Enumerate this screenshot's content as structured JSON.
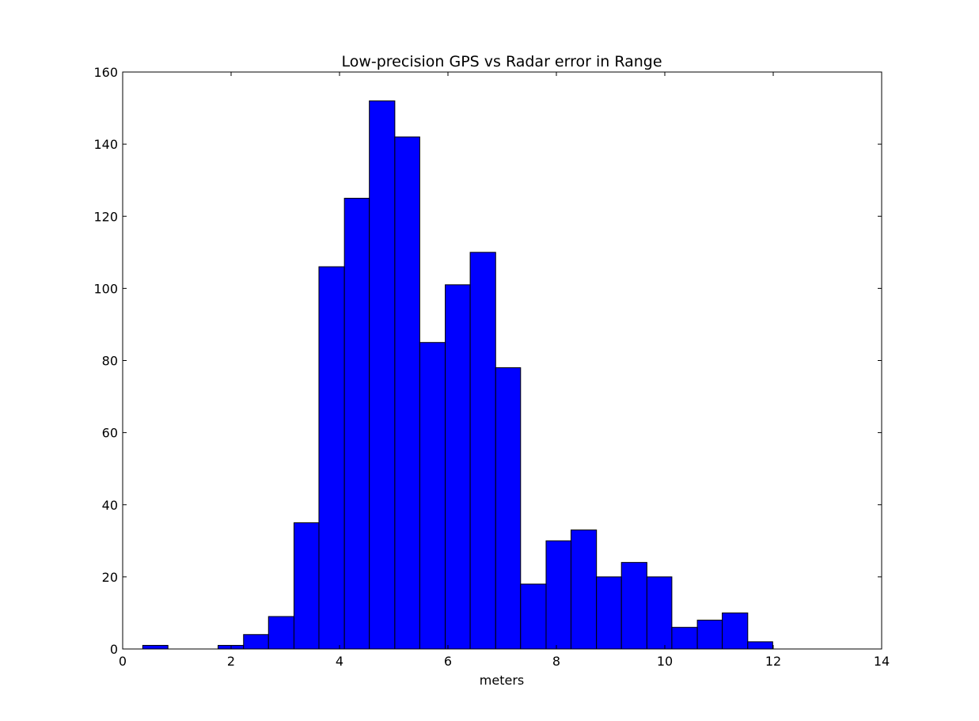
{
  "chart_data": {
    "type": "bar",
    "title": "Low-precision GPS vs Radar error in Range",
    "xlabel": "meters",
    "ylabel": "",
    "xlim": [
      0,
      14
    ],
    "ylim": [
      0,
      160
    ],
    "x_ticks": [
      0,
      2,
      4,
      6,
      8,
      10,
      12,
      14
    ],
    "y_ticks": [
      0,
      20,
      40,
      60,
      80,
      100,
      120,
      140,
      160
    ],
    "grid": false,
    "legend": "none",
    "bar_color": "#0000ff",
    "bins": [
      {
        "x0": 0.37,
        "x1": 0.835,
        "value": 1
      },
      {
        "x0": 0.835,
        "x1": 1.3,
        "value": 0
      },
      {
        "x0": 1.3,
        "x1": 1.76,
        "value": 0
      },
      {
        "x0": 1.76,
        "x1": 2.23,
        "value": 1
      },
      {
        "x0": 2.23,
        "x1": 2.69,
        "value": 4
      },
      {
        "x0": 2.69,
        "x1": 3.16,
        "value": 9
      },
      {
        "x0": 3.16,
        "x1": 3.62,
        "value": 35
      },
      {
        "x0": 3.62,
        "x1": 4.09,
        "value": 106
      },
      {
        "x0": 4.09,
        "x1": 4.55,
        "value": 125
      },
      {
        "x0": 4.55,
        "x1": 5.02,
        "value": 152
      },
      {
        "x0": 5.02,
        "x1": 5.48,
        "value": 142
      },
      {
        "x0": 5.48,
        "x1": 5.95,
        "value": 85
      },
      {
        "x0": 5.95,
        "x1": 6.41,
        "value": 101
      },
      {
        "x0": 6.41,
        "x1": 6.88,
        "value": 110
      },
      {
        "x0": 6.88,
        "x1": 7.34,
        "value": 78
      },
      {
        "x0": 7.34,
        "x1": 7.81,
        "value": 18
      },
      {
        "x0": 7.81,
        "x1": 8.27,
        "value": 30
      },
      {
        "x0": 8.27,
        "x1": 8.74,
        "value": 33
      },
      {
        "x0": 8.74,
        "x1": 9.2,
        "value": 20
      },
      {
        "x0": 9.2,
        "x1": 9.67,
        "value": 24
      },
      {
        "x0": 9.67,
        "x1": 10.13,
        "value": 20
      },
      {
        "x0": 10.13,
        "x1": 10.6,
        "value": 6
      },
      {
        "x0": 10.6,
        "x1": 11.06,
        "value": 8
      },
      {
        "x0": 11.06,
        "x1": 11.53,
        "value": 10
      },
      {
        "x0": 11.53,
        "x1": 11.99,
        "value": 2
      }
    ]
  }
}
